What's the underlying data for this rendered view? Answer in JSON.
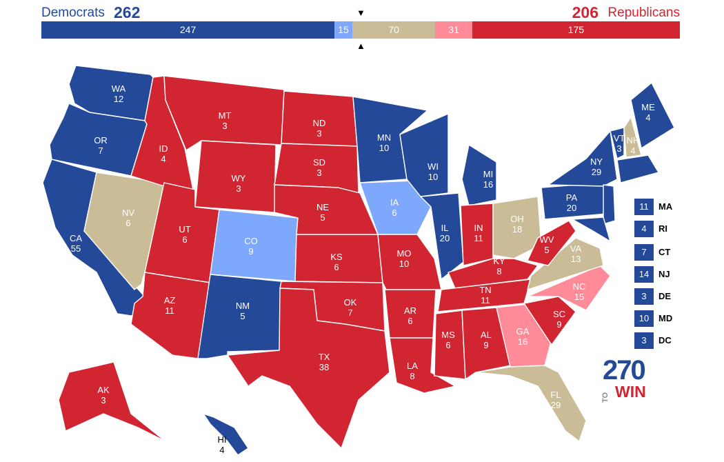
{
  "colors": {
    "safe_dem": "#244999",
    "lean_dem": "#7ea8fb",
    "tossup": "#c9bc96",
    "lean_rep": "#ff8b98",
    "safe_rep": "#d22532"
  },
  "header": {
    "dem_name": "Democrats",
    "dem_total": "262",
    "rep_total": "206",
    "rep_name": "Republicans"
  },
  "tally": [
    {
      "label": "247",
      "value": 247,
      "color": "#244999"
    },
    {
      "label": "15",
      "value": 15,
      "color": "#7ea8fb"
    },
    {
      "label": "70",
      "value": 70,
      "color": "#c9bc96"
    },
    {
      "label": "31",
      "value": 31,
      "color": "#ff8b98"
    },
    {
      "label": "175",
      "value": 175,
      "color": "#d22532"
    }
  ],
  "markers": {
    "top": "▼",
    "bottom": "▲"
  },
  "states": [
    {
      "abbr": "WA",
      "votes": "12",
      "rating": "safe_dem"
    },
    {
      "abbr": "OR",
      "votes": "7",
      "rating": "safe_dem"
    },
    {
      "abbr": "CA",
      "votes": "55",
      "rating": "safe_dem"
    },
    {
      "abbr": "NV",
      "votes": "6",
      "rating": "tossup"
    },
    {
      "abbr": "ID",
      "votes": "4",
      "rating": "safe_rep"
    },
    {
      "abbr": "MT",
      "votes": "3",
      "rating": "safe_rep"
    },
    {
      "abbr": "WY",
      "votes": "3",
      "rating": "safe_rep"
    },
    {
      "abbr": "UT",
      "votes": "6",
      "rating": "safe_rep"
    },
    {
      "abbr": "AZ",
      "votes": "11",
      "rating": "safe_rep"
    },
    {
      "abbr": "CO",
      "votes": "9",
      "rating": "lean_dem"
    },
    {
      "abbr": "NM",
      "votes": "5",
      "rating": "safe_dem"
    },
    {
      "abbr": "ND",
      "votes": "3",
      "rating": "safe_rep"
    },
    {
      "abbr": "SD",
      "votes": "3",
      "rating": "safe_rep"
    },
    {
      "abbr": "NE",
      "votes": "5",
      "rating": "safe_rep"
    },
    {
      "abbr": "KS",
      "votes": "6",
      "rating": "safe_rep"
    },
    {
      "abbr": "OK",
      "votes": "7",
      "rating": "safe_rep"
    },
    {
      "abbr": "TX",
      "votes": "38",
      "rating": "safe_rep"
    },
    {
      "abbr": "MN",
      "votes": "10",
      "rating": "safe_dem"
    },
    {
      "abbr": "IA",
      "votes": "6",
      "rating": "lean_dem"
    },
    {
      "abbr": "MO",
      "votes": "10",
      "rating": "safe_rep"
    },
    {
      "abbr": "AR",
      "votes": "6",
      "rating": "safe_rep"
    },
    {
      "abbr": "LA",
      "votes": "8",
      "rating": "safe_rep"
    },
    {
      "abbr": "WI",
      "votes": "10",
      "rating": "safe_dem"
    },
    {
      "abbr": "IL",
      "votes": "20",
      "rating": "safe_dem"
    },
    {
      "abbr": "MI",
      "votes": "16",
      "rating": "safe_dem"
    },
    {
      "abbr": "IN",
      "votes": "11",
      "rating": "safe_rep"
    },
    {
      "abbr": "OH",
      "votes": "18",
      "rating": "tossup"
    },
    {
      "abbr": "KY",
      "votes": "8",
      "rating": "safe_rep"
    },
    {
      "abbr": "TN",
      "votes": "11",
      "rating": "safe_rep"
    },
    {
      "abbr": "MS",
      "votes": "6",
      "rating": "safe_rep"
    },
    {
      "abbr": "AL",
      "votes": "9",
      "rating": "safe_rep"
    },
    {
      "abbr": "GA",
      "votes": "16",
      "rating": "lean_rep"
    },
    {
      "abbr": "FL",
      "votes": "29",
      "rating": "tossup"
    },
    {
      "abbr": "SC",
      "votes": "9",
      "rating": "safe_rep"
    },
    {
      "abbr": "NC",
      "votes": "15",
      "rating": "lean_rep"
    },
    {
      "abbr": "VA",
      "votes": "13",
      "rating": "tossup"
    },
    {
      "abbr": "WV",
      "votes": "5",
      "rating": "safe_rep"
    },
    {
      "abbr": "PA",
      "votes": "20",
      "rating": "safe_dem"
    },
    {
      "abbr": "NY",
      "votes": "29",
      "rating": "safe_dem"
    },
    {
      "abbr": "VT",
      "votes": "3",
      "rating": "safe_dem"
    },
    {
      "abbr": "NH",
      "votes": "4",
      "rating": "tossup"
    },
    {
      "abbr": "ME",
      "votes": "4",
      "rating": "safe_dem"
    },
    {
      "abbr": "AK",
      "votes": "3",
      "rating": "safe_rep"
    },
    {
      "abbr": "HI",
      "votes": "4",
      "rating": "safe_dem"
    }
  ],
  "small_states": [
    {
      "abbr": "MA",
      "votes": "11",
      "rating": "safe_dem"
    },
    {
      "abbr": "RI",
      "votes": "4",
      "rating": "safe_dem"
    },
    {
      "abbr": "CT",
      "votes": "7",
      "rating": "safe_dem"
    },
    {
      "abbr": "NJ",
      "votes": "14",
      "rating": "safe_dem"
    },
    {
      "abbr": "DE",
      "votes": "3",
      "rating": "safe_dem"
    },
    {
      "abbr": "MD",
      "votes": "10",
      "rating": "safe_dem"
    },
    {
      "abbr": "DC",
      "votes": "3",
      "rating": "safe_dem"
    }
  ],
  "logo": {
    "number": "270",
    "to": "TO",
    "win": "WIN"
  }
}
